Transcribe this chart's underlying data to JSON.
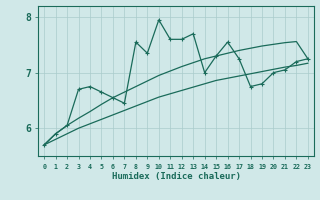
{
  "xlabel": "Humidex (Indice chaleur)",
  "x_data": [
    0,
    1,
    2,
    3,
    4,
    5,
    6,
    7,
    8,
    9,
    10,
    11,
    12,
    13,
    14,
    15,
    16,
    17,
    18,
    19,
    20,
    21,
    22,
    23
  ],
  "y_main": [
    5.7,
    5.9,
    6.05,
    6.7,
    6.75,
    6.65,
    6.55,
    6.45,
    7.55,
    7.35,
    7.95,
    7.6,
    7.6,
    7.7,
    7.0,
    7.3,
    7.55,
    7.25,
    6.75,
    6.8,
    7.0,
    7.05,
    7.2,
    7.25
  ],
  "y_lower": [
    5.7,
    5.8,
    5.9,
    6.0,
    6.08,
    6.16,
    6.24,
    6.32,
    6.4,
    6.48,
    6.56,
    6.62,
    6.68,
    6.74,
    6.8,
    6.86,
    6.9,
    6.94,
    6.98,
    7.02,
    7.06,
    7.1,
    7.13,
    7.17
  ],
  "y_upper": [
    5.7,
    5.9,
    6.05,
    6.18,
    6.3,
    6.43,
    6.55,
    6.65,
    6.75,
    6.85,
    6.95,
    7.03,
    7.11,
    7.18,
    7.25,
    7.3,
    7.35,
    7.4,
    7.44,
    7.48,
    7.51,
    7.54,
    7.56,
    7.25
  ],
  "line_color": "#1a6b5a",
  "bg_color": "#d0e8e8",
  "grid_color": "#aacccc",
  "ylim": [
    5.5,
    8.2
  ],
  "xlim": [
    -0.5,
    23.5
  ],
  "yticks": [
    6,
    7,
    8
  ],
  "xticks": [
    0,
    1,
    2,
    3,
    4,
    5,
    6,
    7,
    8,
    9,
    10,
    11,
    12,
    13,
    14,
    15,
    16,
    17,
    18,
    19,
    20,
    21,
    22,
    23
  ]
}
